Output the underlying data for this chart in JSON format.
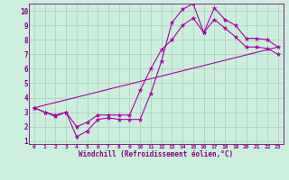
{
  "xlabel": "Windchill (Refroidissement éolien,°C)",
  "ylabel": "",
  "background_color": "#cceedd",
  "grid_color": "#aaccbb",
  "line_color": "#aa00aa",
  "xlim": [
    -0.5,
    23.5
  ],
  "ylim": [
    0.8,
    10.5
  ],
  "xticks": [
    0,
    1,
    2,
    3,
    4,
    5,
    6,
    7,
    8,
    9,
    10,
    11,
    12,
    13,
    14,
    15,
    16,
    17,
    18,
    19,
    20,
    21,
    22,
    23
  ],
  "yticks": [
    1,
    2,
    3,
    4,
    5,
    6,
    7,
    8,
    9,
    10
  ],
  "line1_x": [
    0,
    1,
    2,
    3,
    4,
    5,
    6,
    7,
    8,
    9,
    10,
    11,
    12,
    13,
    14,
    15,
    16,
    17,
    18,
    19,
    20,
    21,
    22,
    23
  ],
  "line1_y": [
    3.3,
    3.0,
    2.7,
    3.0,
    1.3,
    1.7,
    2.5,
    2.6,
    2.5,
    2.5,
    2.5,
    4.3,
    6.5,
    9.2,
    10.1,
    10.5,
    8.5,
    10.2,
    9.4,
    9.0,
    8.1,
    8.1,
    8.0,
    7.5
  ],
  "line2_x": [
    0,
    1,
    2,
    3,
    4,
    5,
    6,
    7,
    8,
    9,
    10,
    11,
    12,
    13,
    14,
    15,
    16,
    17,
    18,
    19,
    20,
    21,
    22,
    23
  ],
  "line2_y": [
    3.3,
    3.0,
    2.8,
    3.0,
    2.0,
    2.3,
    2.8,
    2.8,
    2.8,
    2.8,
    4.5,
    6.0,
    7.3,
    8.0,
    9.0,
    9.5,
    8.5,
    9.4,
    8.8,
    8.2,
    7.5,
    7.5,
    7.4,
    7.0
  ],
  "line3_x": [
    0,
    23
  ],
  "line3_y": [
    3.3,
    7.5
  ]
}
